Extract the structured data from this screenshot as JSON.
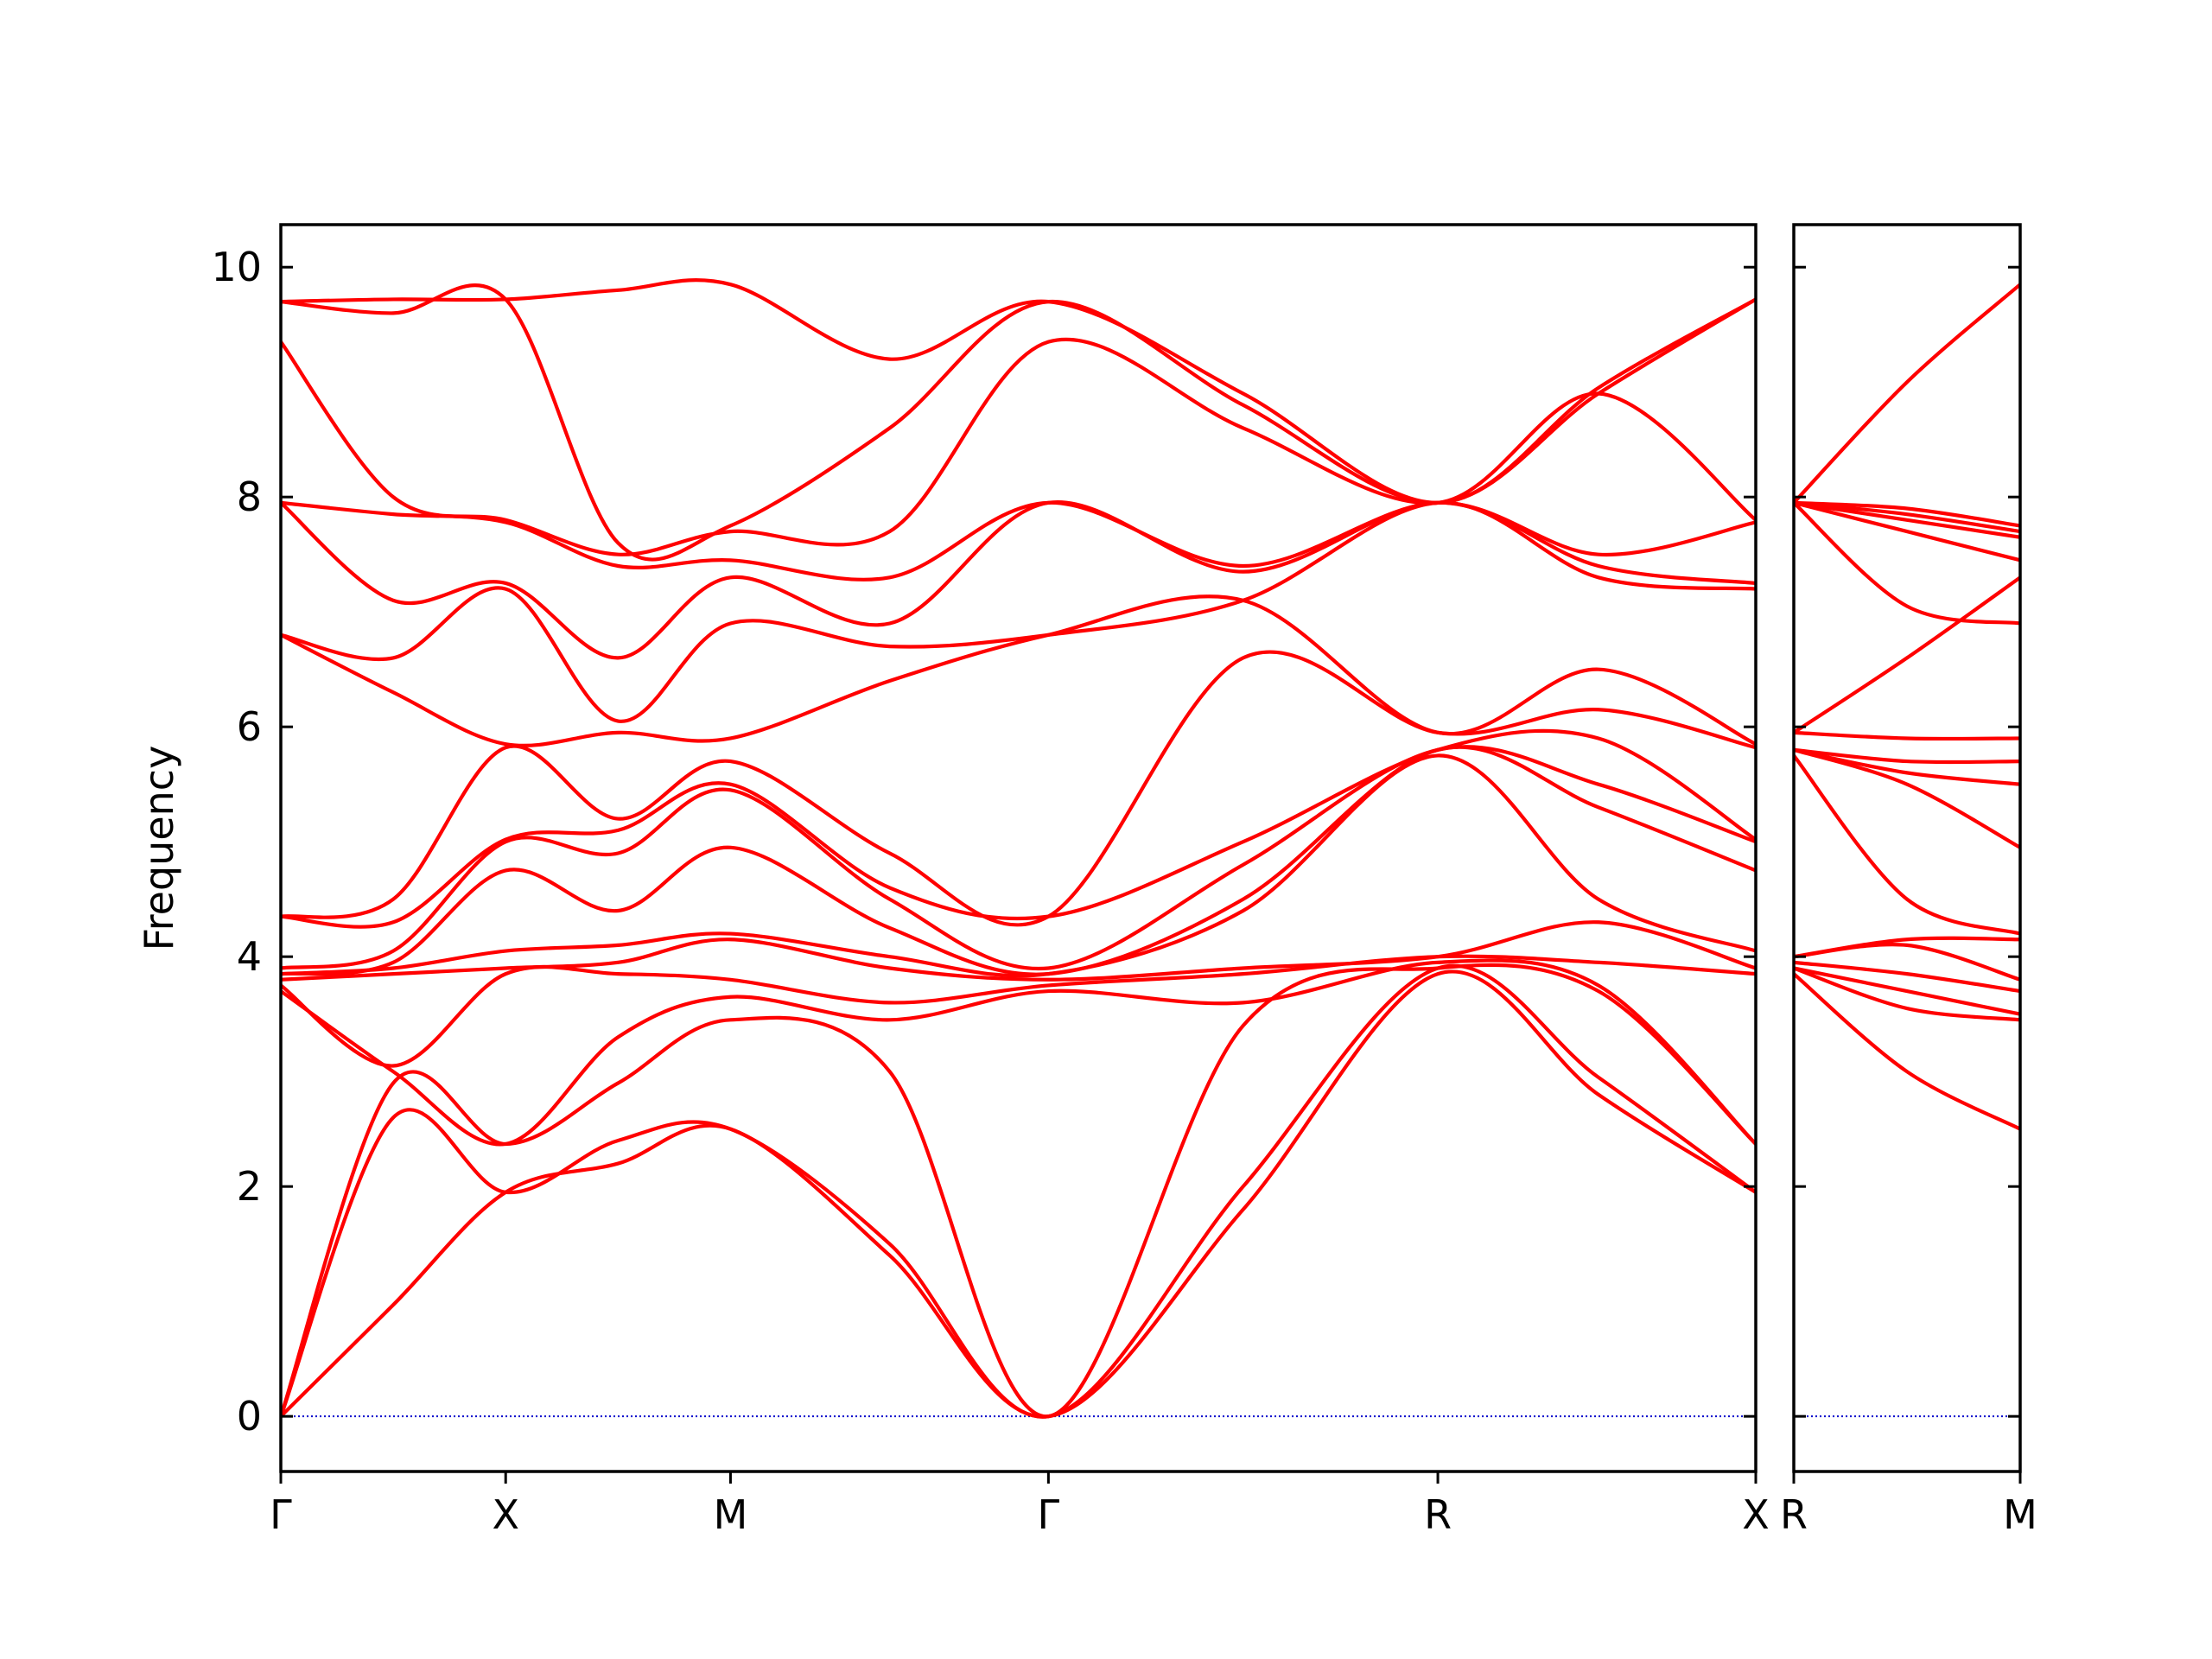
{
  "chart_data": [
    {
      "type": "line",
      "ylabel": "Frequency",
      "color": "#ff0000",
      "zero_line_color": "#0000cc",
      "x": [
        0,
        0.25,
        0.5,
        0.75,
        1.0,
        1.354,
        1.707,
        2.14,
        2.573,
        2.93,
        3.28
      ],
      "xlim": [
        0,
        3.28
      ],
      "xticks": [
        {
          "value": 0,
          "label": "Γ"
        },
        {
          "value": 0.5,
          "label": "X"
        },
        {
          "value": 1.0,
          "label": "M"
        },
        {
          "value": 1.707,
          "label": "Γ"
        },
        {
          "value": 2.573,
          "label": "R"
        },
        {
          "value": 3.28,
          "label": "X"
        }
      ],
      "ylim": [
        -0.48,
        10.37
      ],
      "yticks": [
        0,
        2,
        4,
        6,
        8,
        10
      ],
      "series": [
        {
          "values": [
            0,
            0.97,
            1.95,
            2.2,
            2.5,
            1.4,
            0,
            1.8,
            3.85,
            2.8,
            1.95
          ]
        },
        {
          "values": [
            0,
            2.6,
            1.95,
            2.4,
            2.5,
            1.5,
            0,
            2.0,
            3.9,
            2.95,
            1.95
          ]
        },
        {
          "values": [
            0,
            2.9,
            2.37,
            2.9,
            3.45,
            3.0,
            0,
            3.4,
            3.9,
            3.7,
            2.37
          ]
        },
        {
          "values": [
            3.7,
            3.0,
            2.37,
            3.3,
            3.65,
            3.45,
            3.7,
            3.6,
            3.95,
            3.75,
            2.37
          ]
        },
        {
          "values": [
            3.75,
            3.05,
            3.85,
            3.85,
            3.8,
            3.6,
            3.75,
            3.85,
            4.0,
            3.95,
            3.85
          ]
        },
        {
          "values": [
            3.8,
            3.85,
            3.9,
            3.95,
            4.15,
            3.9,
            3.8,
            3.9,
            4.0,
            4.3,
            3.9
          ]
        },
        {
          "values": [
            3.85,
            3.9,
            4.05,
            4.1,
            4.2,
            4.0,
            3.85,
            4.4,
            5.75,
            4.5,
            4.05
          ]
        },
        {
          "values": [
            3.85,
            3.95,
            4.75,
            4.4,
            4.95,
            4.25,
            3.85,
            4.5,
            5.8,
            5.3,
            4.75
          ]
        },
        {
          "values": [
            3.9,
            4.05,
            5.0,
            4.9,
            5.45,
            4.5,
            3.9,
            4.8,
            5.8,
            5.5,
            5.0
          ]
        },
        {
          "values": [
            4.35,
            4.3,
            5.02,
            5.1,
            5.5,
            4.6,
            4.35,
            5.0,
            5.8,
            5.9,
            5.02
          ]
        },
        {
          "values": [
            4.35,
            4.5,
            5.82,
            5.2,
            5.7,
            4.9,
            4.35,
            6.6,
            5.95,
            6.15,
            5.82
          ]
        },
        {
          "values": [
            6.8,
            6.3,
            5.85,
            5.95,
            5.9,
            6.4,
            6.8,
            7.1,
            5.95,
            6.5,
            5.85
          ]
        },
        {
          "values": [
            6.8,
            6.6,
            7.2,
            6.05,
            6.9,
            6.7,
            6.8,
            7.1,
            7.95,
            7.3,
            7.2
          ]
        },
        {
          "values": [
            7.95,
            7.1,
            7.25,
            6.6,
            7.3,
            6.9,
            7.95,
            7.35,
            7.95,
            7.4,
            7.25
          ]
        },
        {
          "values": [
            7.95,
            7.85,
            7.78,
            7.4,
            7.45,
            7.3,
            7.95,
            7.4,
            7.95,
            7.5,
            7.78
          ]
        },
        {
          "values": [
            9.35,
            8.0,
            7.8,
            7.5,
            7.7,
            7.7,
            9.35,
            8.6,
            7.95,
            8.9,
            7.8
          ]
        },
        {
          "values": [
            9.7,
            9.6,
            9.72,
            7.6,
            7.75,
            8.6,
            9.7,
            8.8,
            7.95,
            8.9,
            9.72
          ]
        },
        {
          "values": [
            9.7,
            9.72,
            9.72,
            9.8,
            9.85,
            9.2,
            9.7,
            8.9,
            7.95,
            8.95,
            9.72
          ]
        }
      ]
    },
    {
      "type": "line",
      "sharey": true,
      "color": "#ff0000",
      "zero_line_color": "#0000cc",
      "x": [
        0,
        0.25,
        0.5
      ],
      "xlim": [
        0,
        0.5
      ],
      "xticks": [
        {
          "value": 0,
          "label": "R"
        },
        {
          "value": 0.5,
          "label": "M"
        }
      ],
      "ylim": [
        -0.48,
        10.37
      ],
      "yticks": [
        0,
        2,
        4,
        6,
        8,
        10
      ],
      "series": [
        {
          "values": [
            3.85,
            3.0,
            2.5
          ]
        },
        {
          "values": [
            3.9,
            3.55,
            3.45
          ]
        },
        {
          "values": [
            3.9,
            3.7,
            3.5
          ]
        },
        {
          "values": [
            3.95,
            3.85,
            3.7
          ]
        },
        {
          "values": [
            4.0,
            4.1,
            3.8
          ]
        },
        {
          "values": [
            4.0,
            4.15,
            4.15
          ]
        },
        {
          "values": [
            5.75,
            4.5,
            4.2
          ]
        },
        {
          "values": [
            5.8,
            5.5,
            4.95
          ]
        },
        {
          "values": [
            5.8,
            5.6,
            5.5
          ]
        },
        {
          "values": [
            5.8,
            5.7,
            5.7
          ]
        },
        {
          "values": [
            5.95,
            5.9,
            5.9
          ]
        },
        {
          "values": [
            5.95,
            6.6,
            7.3
          ]
        },
        {
          "values": [
            7.95,
            7.05,
            6.9
          ]
        },
        {
          "values": [
            7.95,
            7.7,
            7.45
          ]
        },
        {
          "values": [
            7.95,
            7.8,
            7.65
          ]
        },
        {
          "values": [
            7.95,
            7.85,
            7.7
          ]
        },
        {
          "values": [
            7.95,
            7.9,
            7.75
          ]
        },
        {
          "values": [
            7.95,
            9.0,
            9.85
          ]
        }
      ]
    }
  ]
}
